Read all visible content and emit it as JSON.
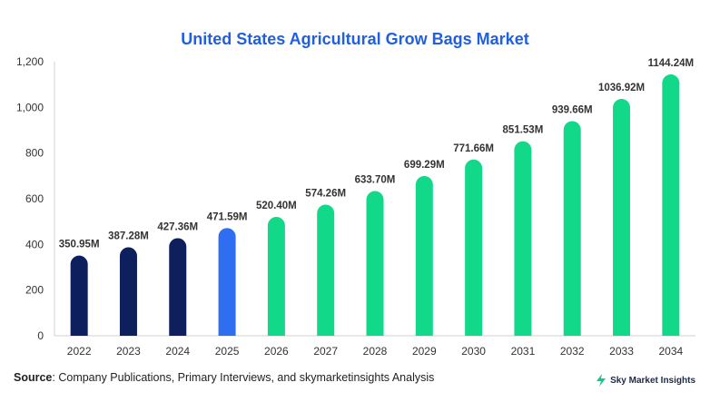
{
  "header": {
    "title": "United States Agricultural Grow Bags Market"
  },
  "footer": {
    "source_label": "Source",
    "source_text": ": Company Publications, Primary Interviews, and skymarketinsights Analysis",
    "brand": "Sky Market Insights"
  },
  "colors": {
    "historic": "#0d1f5c",
    "current": "#2f6ef0",
    "forecast": "#12d98a",
    "title": "#1f5fe0"
  },
  "chart_data": {
    "type": "bar",
    "title": "United States Agricultural Grow Bags Market",
    "categories": [
      "2022",
      "2023",
      "2024",
      "2025",
      "2026",
      "2027",
      "2028",
      "2029",
      "2030",
      "2031",
      "2032",
      "2033",
      "2034"
    ],
    "values": [
      350.95,
      387.28,
      427.36,
      471.59,
      520.4,
      574.26,
      633.7,
      699.29,
      771.66,
      851.53,
      939.66,
      1036.92,
      1144.24
    ],
    "value_labels": [
      "350.95M",
      "387.28M",
      "427.36M",
      "471.59M",
      "520.40M",
      "574.26M",
      "633.70M",
      "699.29M",
      "771.66M",
      "851.53M",
      "939.66M",
      "1036.92M",
      "1144.24M"
    ],
    "bar_groups": [
      "historic",
      "historic",
      "historic",
      "current",
      "forecast",
      "forecast",
      "forecast",
      "forecast",
      "forecast",
      "forecast",
      "forecast",
      "forecast",
      "forecast"
    ],
    "ylim": [
      0,
      1200
    ],
    "yticks": [
      0,
      200,
      400,
      600,
      800,
      1000,
      1200
    ],
    "ytick_labels": [
      "0",
      "200",
      "400",
      "600",
      "800",
      "1,000",
      "1,200"
    ],
    "xlabel": "",
    "ylabel": "",
    "grid": false
  }
}
